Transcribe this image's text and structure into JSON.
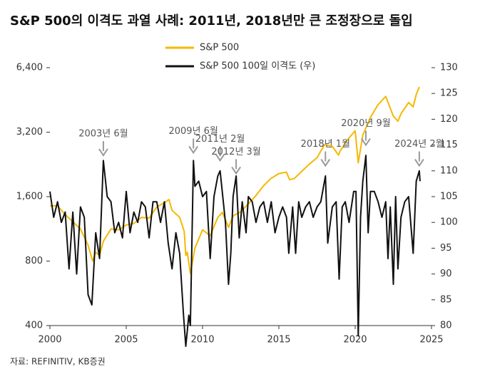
{
  "chart_data": {
    "type": "line",
    "title": "S&P 500의 이격도 과열 사례: 2011년, 2018년만 큰 조정장으로 돌입",
    "source": "자료: REFINITIV, KB증권",
    "xlim": [
      2000,
      2025
    ],
    "xticks": [
      2000,
      2005,
      2010,
      2015,
      2020,
      2025
    ],
    "ylim": [
      400,
      6400
    ],
    "ylog": true,
    "yticks": [
      400,
      800,
      {
        "value": 1600,
        "label": "1,600"
      },
      {
        "value": 3200,
        "label": "3,200"
      },
      {
        "value": 6400,
        "label": "6,400"
      }
    ],
    "y2lim": [
      80,
      130
    ],
    "y2ticks": [
      80,
      85,
      90,
      95,
      100,
      105,
      110,
      115,
      120,
      125,
      130
    ],
    "series": [
      {
        "name": "S&P 500",
        "color": "#f5b800",
        "x": [
          2000,
          2000.5,
          2001,
          2001.5,
          2002,
          2002.5,
          2002.8,
          2003,
          2003.25,
          2003.5,
          2004,
          2004.5,
          2005,
          2005.5,
          2006,
          2006.5,
          2007,
          2007.5,
          2007.8,
          2008,
          2008.5,
          2008.8,
          2008.9,
          2009,
          2009.2,
          2009.5,
          2010,
          2010.5,
          2011,
          2011.3,
          2011.7,
          2012,
          2012.5,
          2013,
          2013.5,
          2014,
          2014.5,
          2015,
          2015.5,
          2015.7,
          2016,
          2016.5,
          2017,
          2017.5,
          2018,
          2018.5,
          2018.9,
          2019,
          2019.5,
          2020,
          2020.2,
          2020.5,
          2021,
          2021.5,
          2022,
          2022.5,
          2022.8,
          2023,
          2023.5,
          2023.8,
          2024,
          2024.2
        ],
        "values": [
          1450,
          1450,
          1320,
          1220,
          1130,
          950,
          800,
          880,
          850,
          990,
          1130,
          1120,
          1180,
          1200,
          1280,
          1270,
          1430,
          1500,
          1550,
          1380,
          1280,
          1100,
          850,
          880,
          700,
          920,
          1120,
          1050,
          1280,
          1350,
          1150,
          1300,
          1360,
          1480,
          1620,
          1800,
          1950,
          2050,
          2080,
          1920,
          1940,
          2100,
          2270,
          2430,
          2800,
          2750,
          2500,
          2600,
          2950,
          3250,
          2300,
          3100,
          3750,
          4300,
          4700,
          3800,
          3600,
          3900,
          4400,
          4200,
          4800,
          5200
        ]
      },
      {
        "name": "S&P 500 100일 이격도 (우)",
        "color": "#111111",
        "axis": "y2",
        "x": [
          2000,
          2000.25,
          2000.5,
          2000.75,
          2001,
          2001.25,
          2001.5,
          2001.75,
          2002,
          2002.25,
          2002.5,
          2002.75,
          2003,
          2003.25,
          2003.5,
          2003.75,
          2004,
          2004.25,
          2004.5,
          2004.75,
          2005,
          2005.25,
          2005.5,
          2005.75,
          2006,
          2006.25,
          2006.5,
          2006.75,
          2007,
          2007.25,
          2007.5,
          2007.75,
          2008,
          2008.25,
          2008.5,
          2008.75,
          2008.9,
          2009.1,
          2009.2,
          2009.4,
          2009.5,
          2009.75,
          2010,
          2010.25,
          2010.5,
          2010.75,
          2011,
          2011.15,
          2011.5,
          2011.7,
          2011.85,
          2012,
          2012.2,
          2012.4,
          2012.6,
          2012.85,
          2013,
          2013.25,
          2013.5,
          2013.75,
          2014,
          2014.25,
          2014.5,
          2014.75,
          2015,
          2015.25,
          2015.5,
          2015.65,
          2015.9,
          2016.1,
          2016.3,
          2016.5,
          2016.75,
          2017,
          2017.25,
          2017.5,
          2017.75,
          2018.05,
          2018.2,
          2018.5,
          2018.75,
          2018.95,
          2019.15,
          2019.35,
          2019.6,
          2019.9,
          2020.05,
          2020.2,
          2020.35,
          2020.5,
          2020.7,
          2020.85,
          2021,
          2021.25,
          2021.5,
          2021.75,
          2022,
          2022.15,
          2022.3,
          2022.5,
          2022.65,
          2022.8,
          2023,
          2023.25,
          2023.5,
          2023.8,
          2024,
          2024.2,
          2024.25
        ],
        "values": [
          106,
          101,
          104,
          100,
          102,
          91,
          102,
          90,
          103,
          101,
          86,
          84,
          98,
          93,
          112,
          105,
          104,
          98,
          100,
          97,
          106,
          98,
          102,
          100,
          104,
          103,
          97,
          104,
          104,
          100,
          104,
          96,
          91,
          98,
          94,
          82,
          76,
          82,
          80,
          112,
          107,
          108,
          105,
          106,
          93,
          105,
          109,
          110,
          100,
          88,
          94,
          105,
          109,
          97,
          104,
          98,
          105,
          104,
          100,
          103,
          104,
          100,
          104,
          98,
          101,
          103,
          101,
          94,
          103,
          94,
          104,
          101,
          103,
          104,
          101,
          103,
          104,
          109,
          96,
          103,
          104,
          89,
          103,
          104,
          100,
          106,
          106,
          78,
          101,
          108,
          113,
          98,
          106,
          106,
          104,
          101,
          104,
          93,
          103,
          88,
          105,
          91,
          101,
          104,
          105,
          94,
          108,
          110,
          108
        ]
      }
    ],
    "annotations": [
      {
        "text": "2003년 6월",
        "x": 2003.5,
        "y": 113
      },
      {
        "text": "2009년 6월",
        "x": 2009.4,
        "y": 113.5
      },
      {
        "text": "2011년 2월",
        "x": 2011.15,
        "y": 112
      },
      {
        "text": "2012년 3월",
        "x": 2012.2,
        "y": 109.5
      },
      {
        "text": "2018년 1월",
        "x": 2018.05,
        "y": 111
      },
      {
        "text": "2020년 9월",
        "x": 2020.7,
        "y": 115
      },
      {
        "text": "2024년 2월",
        "x": 2024.2,
        "y": 111
      }
    ]
  }
}
